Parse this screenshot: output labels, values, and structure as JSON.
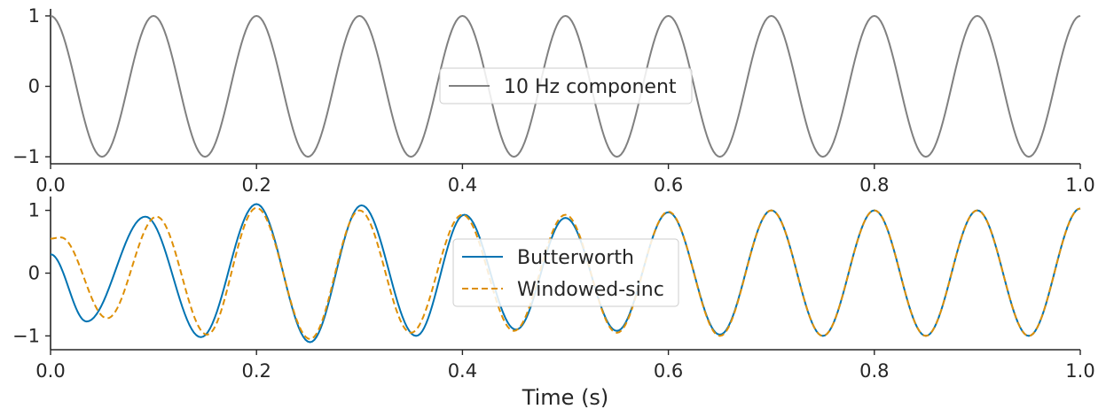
{
  "chart_data": [
    {
      "type": "line",
      "title": "",
      "xlabel": "",
      "ylabel": "",
      "xlim": [
        0.0,
        1.0
      ],
      "ylim": [
        -1.1,
        1.1
      ],
      "x_ticks": [
        "0.0",
        "0.2",
        "0.4",
        "0.6",
        "0.8",
        "1.0"
      ],
      "y_ticks": [
        "−1",
        "0",
        "1"
      ],
      "grid": false,
      "legend_position": "center",
      "series": [
        {
          "name": "10 Hz component",
          "color": "#808080",
          "style": "solid",
          "x": [
            0.0,
            0.05,
            0.1,
            0.15,
            0.2,
            0.25,
            0.3,
            0.35,
            0.4,
            0.45,
            0.5,
            0.55,
            0.6,
            0.65,
            0.7,
            0.75,
            0.8,
            0.85,
            0.9,
            0.95,
            1.0
          ],
          "y": [
            1,
            -1,
            1,
            -1,
            1,
            -1,
            1,
            -1,
            1,
            -1,
            1,
            -1,
            1,
            -1,
            1,
            -1,
            1,
            -1,
            1,
            -1,
            1
          ]
        }
      ]
    },
    {
      "type": "line",
      "title": "",
      "xlabel": "Time (s)",
      "ylabel": "",
      "xlim": [
        0.0,
        1.0
      ],
      "ylim": [
        -1.22,
        1.22
      ],
      "x_ticks": [
        "0.0",
        "0.2",
        "0.4",
        "0.6",
        "0.8",
        "1.0"
      ],
      "y_ticks": [
        "−1",
        "0",
        "1"
      ],
      "grid": false,
      "legend_position": "center",
      "series": [
        {
          "name": "Butterworth",
          "color": "#0173b2",
          "style": "solid",
          "x": [
            0.0,
            0.035,
            0.092,
            0.146,
            0.2,
            0.252,
            0.302,
            0.355,
            0.402,
            0.452,
            0.5,
            0.55,
            0.6,
            0.65,
            0.7,
            0.75,
            0.8,
            0.85,
            0.9,
            0.95,
            1.0
          ],
          "y": [
            0.3,
            -0.77,
            0.9,
            -1.02,
            1.1,
            -1.1,
            1.08,
            -1.0,
            0.93,
            -0.9,
            0.88,
            -0.92,
            0.97,
            -0.98,
            1.0,
            -1.0,
            1.0,
            -1.0,
            1.0,
            -1.0,
            1.03
          ]
        },
        {
          "name": "Windowed-sinc",
          "color": "#de8f05",
          "style": "dashed",
          "x": [
            0.0,
            0.01,
            0.055,
            0.103,
            0.152,
            0.2,
            0.252,
            0.3,
            0.35,
            0.4,
            0.45,
            0.5,
            0.55,
            0.6,
            0.65,
            0.7,
            0.75,
            0.8,
            0.85,
            0.9,
            0.95,
            1.0
          ],
          "y": [
            0.55,
            0.57,
            -0.72,
            0.9,
            -0.98,
            1.04,
            -1.05,
            1.0,
            -0.95,
            0.93,
            -0.92,
            0.93,
            -0.95,
            0.98,
            -1.0,
            1.0,
            -1.0,
            1.0,
            -1.0,
            1.0,
            -1.0,
            1.03
          ]
        }
      ]
    }
  ]
}
